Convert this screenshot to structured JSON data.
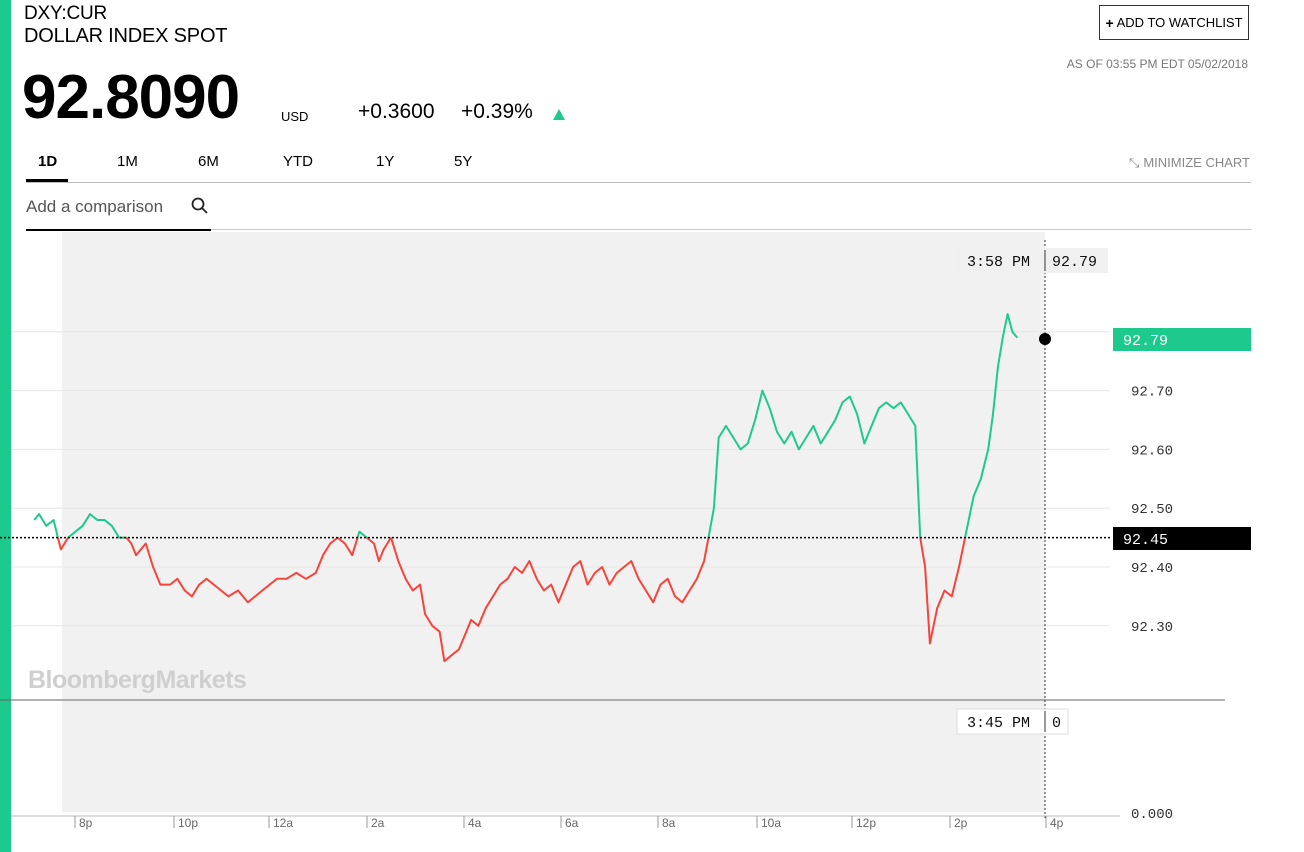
{
  "header": {
    "ticker": "DXY:CUR",
    "name": "DOLLAR INDEX SPOT",
    "price": "92.8090",
    "currency": "USD",
    "change": "+0.3600",
    "change_pct": "+0.39%",
    "as_of": "AS OF 03:55 PM EDT 05/02/2018",
    "watchlist_label": "ADD TO WATCHLIST"
  },
  "tabs": [
    {
      "label": "1D",
      "active": true
    },
    {
      "label": "1M",
      "active": false
    },
    {
      "label": "6M",
      "active": false
    },
    {
      "label": "YTD",
      "active": false
    },
    {
      "label": "1Y",
      "active": false
    },
    {
      "label": "5Y",
      "active": false
    }
  ],
  "minimize_label": "MINIMIZE CHART",
  "compare": {
    "placeholder": "Add a comparison"
  },
  "watermark": "BloombergMarkets",
  "colors": {
    "up": "#1ec98e",
    "down": "#f5443b",
    "accent": "#1ec98e",
    "area": "#f1f1f1"
  },
  "chart_data": {
    "type": "line",
    "prev_close": 92.45,
    "prev_close_label": "92.45",
    "last_label": "92.79",
    "y_ticks": [
      "92.30",
      "92.40",
      "92.50",
      "92.60",
      "92.70"
    ],
    "volume_tick": "0.000",
    "x_ticks": [
      "8p",
      "10p",
      "12a",
      "2a",
      "4a",
      "6a",
      "8a",
      "10a",
      "12p",
      "2p",
      "4p"
    ],
    "crosshair": {
      "time": "3:58 PM",
      "value": "92.79",
      "volume_time": "3:45 PM",
      "volume_value": "0"
    },
    "ylim": [
      92.22,
      92.86
    ],
    "points": [
      [
        19.0,
        92.48
      ],
      [
        19.1,
        92.49
      ],
      [
        19.25,
        92.47
      ],
      [
        19.4,
        92.48
      ],
      [
        19.55,
        92.43
      ],
      [
        19.7,
        92.45
      ],
      [
        19.85,
        92.46
      ],
      [
        20.0,
        92.47
      ],
      [
        20.15,
        92.49
      ],
      [
        20.3,
        92.48
      ],
      [
        20.45,
        92.48
      ],
      [
        20.6,
        92.47
      ],
      [
        20.75,
        92.45
      ],
      [
        20.9,
        92.45
      ],
      [
        21.0,
        92.44
      ],
      [
        21.1,
        92.42
      ],
      [
        21.3,
        92.44
      ],
      [
        21.45,
        92.4
      ],
      [
        21.6,
        92.37
      ],
      [
        21.8,
        92.37
      ],
      [
        21.95,
        92.38
      ],
      [
        22.1,
        92.36
      ],
      [
        22.25,
        92.35
      ],
      [
        22.4,
        92.37
      ],
      [
        22.55,
        92.38
      ],
      [
        22.7,
        92.37
      ],
      [
        22.85,
        92.36
      ],
      [
        23.0,
        92.35
      ],
      [
        23.2,
        92.36
      ],
      [
        23.4,
        92.34
      ],
      [
        23.55,
        92.35
      ],
      [
        23.7,
        92.36
      ],
      [
        23.85,
        92.37
      ],
      [
        24.0,
        92.38
      ],
      [
        24.2,
        92.38
      ],
      [
        24.4,
        92.39
      ],
      [
        24.6,
        92.38
      ],
      [
        24.8,
        92.39
      ],
      [
        24.95,
        92.42
      ],
      [
        25.1,
        92.44
      ],
      [
        25.25,
        92.45
      ],
      [
        25.4,
        92.44
      ],
      [
        25.55,
        92.42
      ],
      [
        25.7,
        92.46
      ],
      [
        25.85,
        92.45
      ],
      [
        26.0,
        92.44
      ],
      [
        26.1,
        92.41
      ],
      [
        26.2,
        92.43
      ],
      [
        26.35,
        92.45
      ],
      [
        26.5,
        92.41
      ],
      [
        26.65,
        92.38
      ],
      [
        26.8,
        92.36
      ],
      [
        26.95,
        92.37
      ],
      [
        27.05,
        92.32
      ],
      [
        27.2,
        92.3
      ],
      [
        27.35,
        92.29
      ],
      [
        27.45,
        92.24
      ],
      [
        27.6,
        92.25
      ],
      [
        27.75,
        92.26
      ],
      [
        27.9,
        92.29
      ],
      [
        28.0,
        92.31
      ],
      [
        28.15,
        92.3
      ],
      [
        28.3,
        92.33
      ],
      [
        28.45,
        92.35
      ],
      [
        28.6,
        92.37
      ],
      [
        28.75,
        92.38
      ],
      [
        28.9,
        92.4
      ],
      [
        29.05,
        92.39
      ],
      [
        29.2,
        92.41
      ],
      [
        29.35,
        92.38
      ],
      [
        29.5,
        92.36
      ],
      [
        29.65,
        92.37
      ],
      [
        29.8,
        92.34
      ],
      [
        29.95,
        92.37
      ],
      [
        30.1,
        92.4
      ],
      [
        30.25,
        92.41
      ],
      [
        30.4,
        92.37
      ],
      [
        30.55,
        92.39
      ],
      [
        30.7,
        92.4
      ],
      [
        30.85,
        92.37
      ],
      [
        31.0,
        92.39
      ],
      [
        31.15,
        92.4
      ],
      [
        31.3,
        92.41
      ],
      [
        31.45,
        92.38
      ],
      [
        31.6,
        92.36
      ],
      [
        31.75,
        92.34
      ],
      [
        31.9,
        92.37
      ],
      [
        32.05,
        92.38
      ],
      [
        32.2,
        92.35
      ],
      [
        32.35,
        92.34
      ],
      [
        32.5,
        92.36
      ],
      [
        32.65,
        92.38
      ],
      [
        32.8,
        92.41
      ],
      [
        33.0,
        92.5
      ],
      [
        33.1,
        92.62
      ],
      [
        33.25,
        92.64
      ],
      [
        33.4,
        92.62
      ],
      [
        33.55,
        92.6
      ],
      [
        33.7,
        92.61
      ],
      [
        33.85,
        92.65
      ],
      [
        34.0,
        92.7
      ],
      [
        34.15,
        92.67
      ],
      [
        34.3,
        92.63
      ],
      [
        34.45,
        92.61
      ],
      [
        34.6,
        92.63
      ],
      [
        34.75,
        92.6
      ],
      [
        34.9,
        92.62
      ],
      [
        35.05,
        92.64
      ],
      [
        35.2,
        92.61
      ],
      [
        35.35,
        92.63
      ],
      [
        35.5,
        92.65
      ],
      [
        35.65,
        92.68
      ],
      [
        35.8,
        92.69
      ],
      [
        35.95,
        92.66
      ],
      [
        36.1,
        92.61
      ],
      [
        36.25,
        92.64
      ],
      [
        36.4,
        92.67
      ],
      [
        36.55,
        92.68
      ],
      [
        36.7,
        92.67
      ],
      [
        36.85,
        92.68
      ],
      [
        37.0,
        92.66
      ],
      [
        37.15,
        92.64
      ],
      [
        37.25,
        92.45
      ],
      [
        37.35,
        92.4
      ],
      [
        37.45,
        92.27
      ],
      [
        37.6,
        92.33
      ],
      [
        37.75,
        92.36
      ],
      [
        37.9,
        92.35
      ],
      [
        38.05,
        92.4
      ],
      [
        38.2,
        92.46
      ],
      [
        38.35,
        92.52
      ],
      [
        38.5,
        92.55
      ],
      [
        38.65,
        92.6
      ],
      [
        38.75,
        92.66
      ],
      [
        38.85,
        92.74
      ],
      [
        38.95,
        92.79
      ],
      [
        39.05,
        92.83
      ],
      [
        39.15,
        92.8
      ],
      [
        39.25,
        92.79
      ]
    ]
  }
}
